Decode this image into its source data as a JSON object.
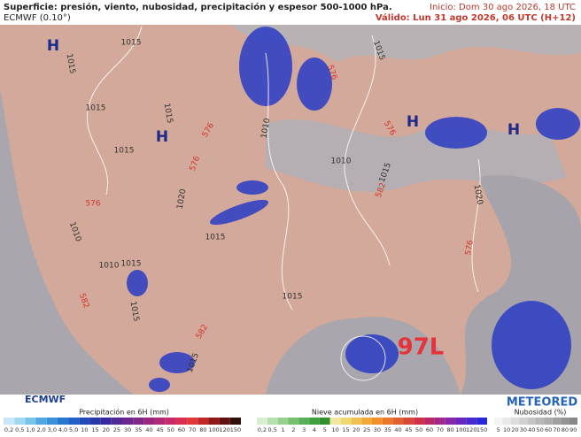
{
  "header": {
    "title": "Superficie: presión, viento, nubosidad, precipitación y espesor 500-1000 hPa.",
    "model": "ECMWF (0.10°)",
    "init": "Inicio: Dom 30 ago 2026, 18 UTC",
    "valid": "Válido: Lun 31 ago 2026, 06 UTC (H+12)"
  },
  "map": {
    "highs": [
      "H",
      "H",
      "H",
      "H"
    ],
    "storm": "97L",
    "isobars": [
      "1015",
      "1015",
      "1015",
      "1015",
      "1015",
      "1010",
      "1015",
      "1010",
      "1015",
      "1020",
      "1020",
      "1015",
      "1010",
      "1015",
      "1010",
      "1015",
      "1015",
      "1015"
    ],
    "thickness": [
      "576",
      "576",
      "576",
      "576",
      "576",
      "582",
      "576",
      "582",
      "582"
    ]
  },
  "footer": {
    "brand_left": "ECMWF",
    "precip": {
      "title": "Precipitación en 6H (mm)",
      "labels": [
        "0,2",
        "0,5",
        "1,0",
        "2,0",
        "3,0",
        "4,0",
        "5,0",
        "10",
        "15",
        "20",
        "25",
        "30",
        "35",
        "40",
        "45",
        "50",
        "60",
        "70",
        "80",
        "100",
        "120",
        "150"
      ]
    },
    "snow": {
      "title": "Nieve acumulada en 6H (mm)",
      "labels": [
        "0,2",
        "0,5",
        "1",
        "2",
        "3",
        "4",
        "5",
        "10",
        "15",
        "20",
        "25",
        "30",
        "35",
        "40",
        "45",
        "50",
        "60",
        "70",
        "80",
        "100",
        "120",
        "150"
      ]
    },
    "brand_right": "METEORED",
    "cloud": {
      "title": "Nubosidad (%)",
      "labels": [
        "5",
        "10",
        "20",
        "30",
        "40",
        "50",
        "60",
        "70",
        "80",
        "90"
      ]
    }
  }
}
